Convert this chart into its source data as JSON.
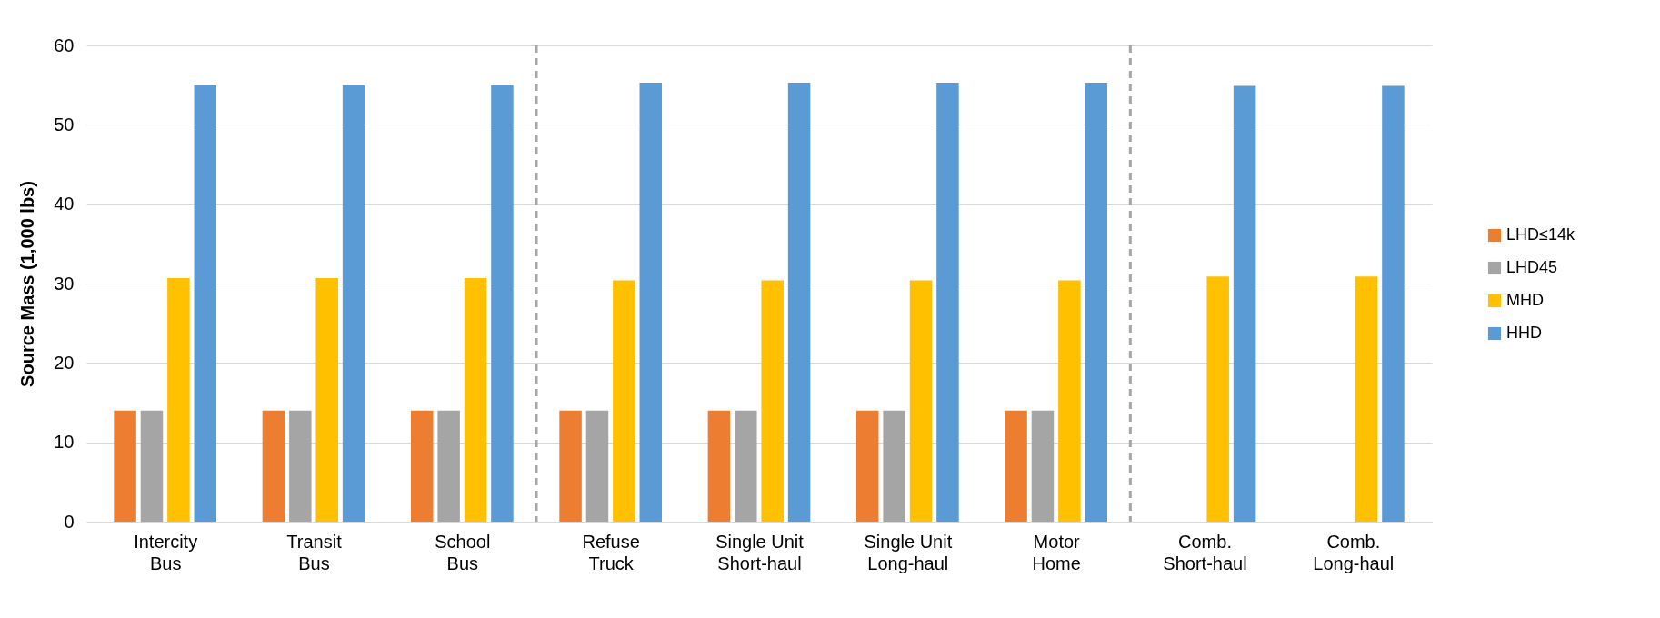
{
  "chart_data": {
    "type": "bar",
    "ylabel": "Source Mass (1,000 lbs)",
    "categories": [
      "Intercity Bus",
      "Transit Bus",
      "School Bus",
      "Refuse Truck",
      "Single Unit Short-haul",
      "Single Unit Long-haul",
      "Motor Home",
      "Comb. Short-haul",
      "Comb. Long-haul"
    ],
    "series": [
      {
        "name": "LHD≤14k",
        "color": "#ed7d31",
        "values": [
          14,
          14,
          14,
          14,
          14,
          14,
          14,
          null,
          null
        ]
      },
      {
        "name": "LHD45",
        "color": "#a5a5a5",
        "values": [
          14,
          14,
          14,
          14,
          14,
          14,
          14,
          null,
          null
        ]
      },
      {
        "name": "MHD",
        "color": "#ffc000",
        "values": [
          30.7,
          30.7,
          30.7,
          30.4,
          30.4,
          30.4,
          30.4,
          30.9,
          30.9
        ]
      },
      {
        "name": "HHD",
        "color": "#5b9bd5",
        "values": [
          55,
          55,
          55,
          55.3,
          55.3,
          55.3,
          55.3,
          54.9,
          54.9
        ]
      }
    ],
    "ylim": [
      0,
      60
    ],
    "yticks": [
      0,
      10,
      20,
      30,
      40,
      50,
      60
    ],
    "grid": "y",
    "legend": "right"
  }
}
